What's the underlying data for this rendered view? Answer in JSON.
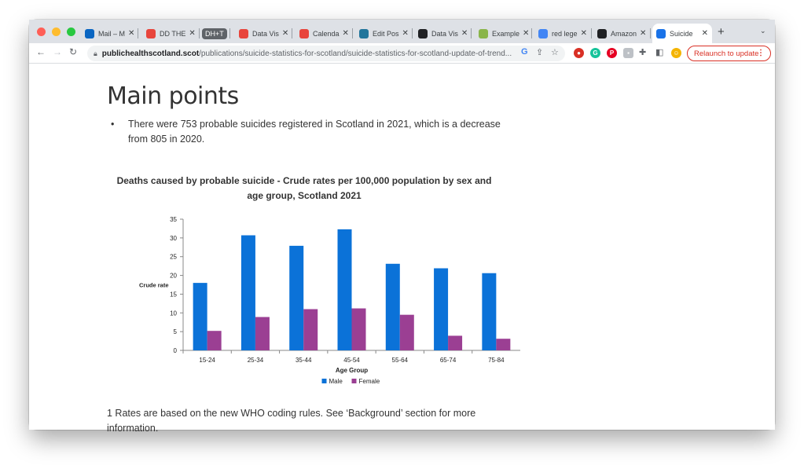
{
  "browser": {
    "tabs": [
      {
        "label": "Mail – M",
        "icon": "outlook-icon",
        "color": "#0a66c2"
      },
      {
        "label": "DD THE",
        "icon": "tableau-icon",
        "color": "#e8453c"
      },
      {
        "label": "DH+T",
        "icon": "group-icon",
        "color": "#5f6368"
      },
      {
        "label": "Data Vis",
        "icon": "tableau-icon",
        "color": "#e8453c"
      },
      {
        "label": "Calenda",
        "icon": "tableau-icon",
        "color": "#e8453c"
      },
      {
        "label": "Edit Pos",
        "icon": "wordpress-icon",
        "color": "#21759b"
      },
      {
        "label": "Data Vis",
        "icon": "circle-logo-icon",
        "color": "#202124"
      },
      {
        "label": "Example",
        "icon": "bird-icon",
        "color": "#8ab54a"
      },
      {
        "label": "red lege",
        "icon": "google-icon",
        "color": "#4285f4"
      },
      {
        "label": "Amazon",
        "icon": "amazon-icon",
        "color": "#202124"
      },
      {
        "label": "Suicide",
        "icon": "sparkle-icon",
        "color": "#1a73e8"
      }
    ],
    "new_tab": "+",
    "url_domain": "publichealthscotland.scot",
    "url_path": "/publications/suicide-statistics-for-scotland/suicide-statistics-for-scotland-update-of-trend...",
    "relaunch_label": "Relaunch to update"
  },
  "page": {
    "heading": "Main points",
    "bullet": "There were 753 probable suicides registered in Scotland in 2021, which is a decrease from 805 in 2020.",
    "footnote": "1 Rates are based on the new WHO coding rules. See ‘Background’ section for more information."
  },
  "chart_data": {
    "type": "bar",
    "title": "Deaths caused by probable suicide - Crude rates per 100,000 population by sex and age group, Scotland 2021",
    "categories": [
      "15-24",
      "25-34",
      "35-44",
      "45-54",
      "55-64",
      "65-74",
      "75-84"
    ],
    "series": [
      {
        "name": "Male",
        "values": [
          18.0,
          30.7,
          27.9,
          32.3,
          23.1,
          21.9,
          20.6
        ],
        "color": "#0b72d8"
      },
      {
        "name": "Female",
        "values": [
          5.2,
          8.9,
          11.0,
          11.2,
          9.5,
          3.9,
          3.1
        ],
        "color": "#9b3f93"
      }
    ],
    "xlabel": "Age Group",
    "ylabel": "Crude rate",
    "ylim": [
      0,
      35
    ],
    "yticks": [
      0,
      5,
      10,
      15,
      20,
      25,
      30,
      35
    ],
    "legend": "bottom",
    "grid": false
  }
}
